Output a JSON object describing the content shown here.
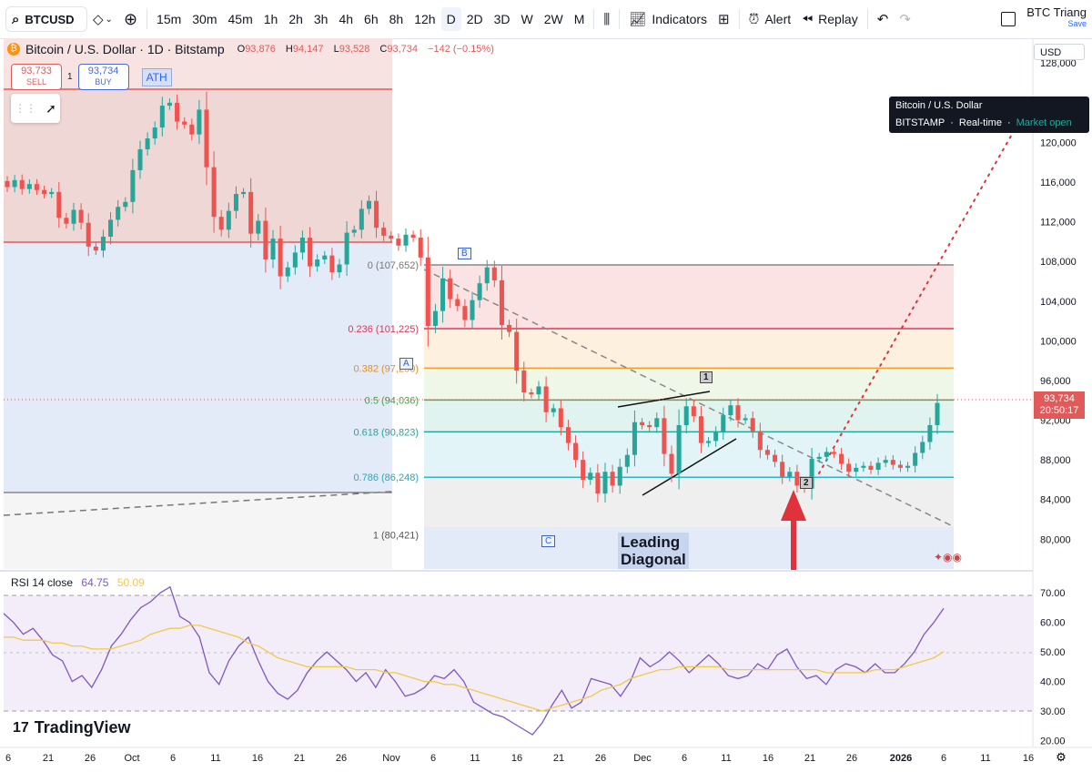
{
  "toolbar": {
    "symbol": "BTCUSD",
    "timeframes": [
      "15m",
      "30m",
      "45m",
      "1h",
      "2h",
      "3h",
      "4h",
      "6h",
      "8h",
      "12h",
      "D",
      "2D",
      "3D",
      "W",
      "2W",
      "M"
    ],
    "active_timeframe": "D",
    "indicators_label": "Indicators",
    "alert_label": "Alert",
    "replay_label": "Replay",
    "layout_name": "BTC Triang",
    "save_label": "Save"
  },
  "legend": {
    "title": "Bitcoin / U.S. Dollar · 1D · Bitstamp",
    "open_label": "O",
    "open": "93,876",
    "high_label": "H",
    "high": "94,147",
    "low_label": "L",
    "low": "93,528",
    "close_label": "C",
    "close": "93,734",
    "change": "−142 (−0.15%)"
  },
  "trade": {
    "sell_price": "93,733",
    "sell_label": "SELL",
    "spread": "1",
    "buy_price": "93,734",
    "buy_label": "BUY"
  },
  "tooltip": {
    "name": "Bitcoin / U.S. Dollar",
    "exchange": "BITSTAMP",
    "mode": "Real-time",
    "status": "Market open"
  },
  "currency": "USD",
  "last_price": {
    "price": "93,734",
    "countdown": "20:50:17"
  },
  "annotations": {
    "ath": "ATH",
    "wave_a": "A",
    "wave_b": "B",
    "wave_c": "C",
    "wave_1": "1",
    "wave_2": "2",
    "pattern_line1": "Leading",
    "pattern_line2": "Diagonal"
  },
  "rsi": {
    "label": "RSI 14 close",
    "value": "64.75",
    "ma": "50.09"
  },
  "branding": "TradingView",
  "colors": {
    "up": "#26a69a",
    "down": "#ef5350",
    "rsi": "#7e57c2",
    "rsi_ma": "#f2c94c"
  },
  "chart_data": [
    {
      "type": "candlestick",
      "title": "Bitcoin / U.S. Dollar · 1D · Bitstamp",
      "y_ticks": [
        80000,
        84000,
        88000,
        92000,
        96000,
        100000,
        104000,
        108000,
        112000,
        116000,
        120000,
        124000,
        128000
      ],
      "y_tick_labels": [
        "80,000",
        "84,000",
        "88,000",
        "92,000",
        "96,000",
        "100,000",
        "104,000",
        "108,000",
        "112,000",
        "116,000",
        "120,000",
        "124,000",
        "128,000"
      ],
      "ylim": [
        77000,
        130500
      ],
      "x_tick_labels": [
        "6",
        "21",
        "26",
        "Oct",
        "6",
        "11",
        "16",
        "21",
        "26",
        "Nov",
        "6",
        "11",
        "16",
        "21",
        "26",
        "Dec",
        "6",
        "11",
        "16",
        "21",
        "26",
        "2026",
        "6",
        "11",
        "16"
      ],
      "closes": [
        115500,
        116200,
        115300,
        115800,
        115200,
        114800,
        115000,
        112400,
        111800,
        113200,
        111900,
        109500,
        109100,
        110500,
        112200,
        113500,
        114000,
        117200,
        119300,
        120400,
        121500,
        123700,
        124000,
        122100,
        121800,
        120800,
        123300,
        117500,
        112500,
        111200,
        113100,
        114800,
        115000,
        110800,
        112100,
        108200,
        110300,
        106500,
        107400,
        108900,
        110400,
        107500,
        108200,
        108600,
        106900,
        107700,
        110900,
        111200,
        113300,
        114100,
        111400,
        110600,
        110300,
        109600,
        110700,
        110400,
        108400,
        101500,
        103000,
        106300,
        104200,
        103500,
        102100,
        104100,
        105800,
        107400,
        106100,
        101600,
        100900,
        97000,
        94800,
        94600,
        95400,
        92800,
        93200,
        91300,
        89700,
        88000,
        86000,
        86700,
        84600,
        86800,
        85400,
        87300,
        88500,
        91800,
        91500,
        91300,
        92200,
        88600,
        86600,
        91500,
        93400,
        92400,
        89700,
        89900,
        90800,
        92500,
        93500,
        92000,
        92200,
        90900,
        89000,
        88500,
        87800,
        86300,
        86800,
        85400,
        85100,
        88100,
        88300,
        88800,
        88600,
        87600,
        86800,
        87200,
        87400,
        87000,
        87700,
        88000,
        87500,
        87200,
        87400,
        88700,
        89800,
        91500,
        93734
      ],
      "levels": [
        {
          "label": "0 (107,652)",
          "value": 107652
        },
        {
          "label": "0.236 (101,225)",
          "value": 101225
        },
        {
          "label": "0.382 (97,250)",
          "value": 97250
        },
        {
          "label": "0.5 (94,036)",
          "value": 94036
        },
        {
          "label": "0.618 (90,823)",
          "value": 90823
        },
        {
          "label": "0.786 (86,248)",
          "value": 86248
        },
        {
          "label": "1 (80,421)",
          "value": 80421
        }
      ]
    },
    {
      "type": "line",
      "title": "RSI 14 close",
      "y_ticks": [
        20,
        30,
        40,
        50,
        60,
        70
      ],
      "y_tick_labels": [
        "20.00",
        "30.00",
        "40.00",
        "50.00",
        "60.00",
        "70.00"
      ],
      "ylim": [
        18,
        75
      ],
      "series": [
        {
          "name": "RSI 14 close",
          "values": [
            63,
            60,
            56,
            58,
            54,
            49,
            47,
            40,
            42,
            38,
            44,
            52,
            56,
            61,
            65,
            67,
            70,
            72,
            62,
            60,
            55,
            43,
            39,
            47,
            52,
            55,
            47,
            40,
            36,
            34,
            37,
            43,
            47,
            50,
            47,
            44,
            40,
            43,
            38,
            44,
            40,
            35,
            36,
            38,
            42,
            41,
            44,
            40,
            33,
            31,
            29,
            28,
            26,
            24,
            22,
            26,
            32,
            37,
            31,
            33,
            41,
            40,
            39,
            35,
            40,
            48,
            45,
            47,
            50,
            47,
            43,
            46,
            49,
            46,
            42,
            41,
            42,
            46,
            44,
            49,
            51,
            45,
            41,
            42,
            39,
            44,
            46,
            45,
            43,
            46,
            43,
            43,
            46,
            50,
            56,
            60,
            64.75
          ]
        },
        {
          "name": "RSI-based MA",
          "values": [
            55,
            55,
            54,
            54,
            54,
            53,
            53,
            52,
            52,
            51,
            51,
            51,
            52,
            53,
            54,
            56,
            57,
            58,
            58,
            59,
            59,
            58,
            57,
            56,
            55,
            53,
            52,
            50,
            48,
            47,
            46,
            45,
            45,
            45,
            45,
            45,
            44,
            44,
            44,
            43,
            43,
            42,
            41,
            40,
            40,
            39,
            39,
            38,
            37,
            36,
            35,
            34,
            33,
            32,
            31,
            30,
            31,
            32,
            33,
            34,
            35,
            37,
            38,
            39,
            41,
            42,
            43,
            44,
            44,
            45,
            45,
            45,
            45,
            45,
            44,
            44,
            44,
            44,
            44,
            44,
            44,
            44,
            44,
            44,
            43,
            43,
            43,
            43,
            43,
            44,
            44,
            44,
            45,
            46,
            47,
            48,
            50.09
          ]
        }
      ]
    }
  ]
}
